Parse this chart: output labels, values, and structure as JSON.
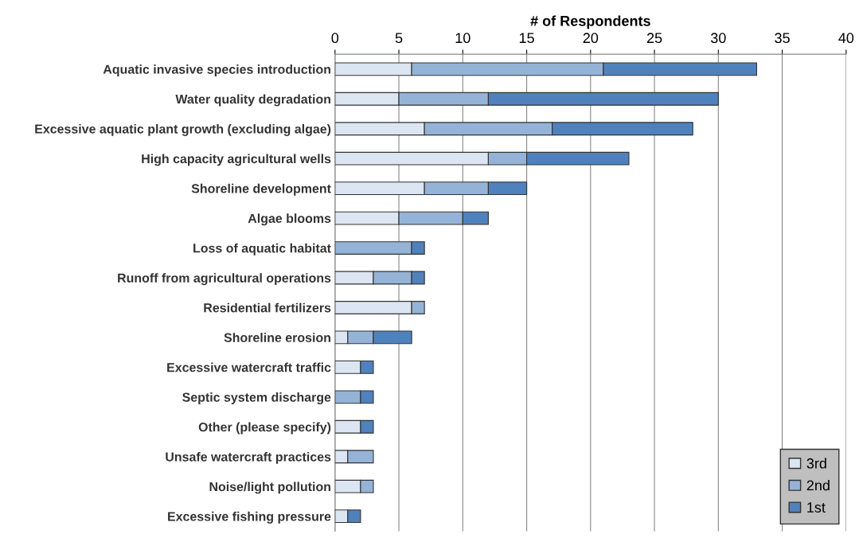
{
  "chart_data": {
    "type": "bar",
    "orientation": "horizontal",
    "stacked": true,
    "xlabel": "# of Respondents",
    "categories": [
      "Aquatic invasive species introduction",
      "Water quality degradation",
      "Excessive aquatic plant growth (excluding algae)",
      "High capacity agricultural wells",
      "Shoreline development",
      "Algae blooms",
      "Loss of aquatic habitat",
      "Runoff from agricultural operations",
      "Residential fertilizers",
      "Shoreline erosion",
      "Excessive watercraft traffic",
      "Septic system discharge",
      "Other (please specify)",
      "Unsafe watercraft practices",
      "Noise/light pollution",
      "Excessive fishing pressure"
    ],
    "series": [
      {
        "name": "3rd",
        "color": "#dce6f2",
        "values": [
          6,
          5,
          7,
          12,
          7,
          5,
          0,
          3,
          6,
          1,
          2,
          0,
          2,
          1,
          2,
          1
        ]
      },
      {
        "name": "2nd",
        "color": "#95b3d7",
        "values": [
          15,
          7,
          10,
          3,
          5,
          5,
          6,
          3,
          1,
          2,
          0,
          2,
          0,
          2,
          1,
          0
        ]
      },
      {
        "name": "1st",
        "color": "#4f81bd",
        "values": [
          12,
          18,
          11,
          8,
          3,
          2,
          1,
          1,
          0,
          3,
          1,
          1,
          1,
          0,
          0,
          1
        ]
      }
    ],
    "xlim": [
      0,
      40
    ],
    "xticks": [
      0,
      5,
      10,
      15,
      20,
      25,
      30,
      35,
      40
    ],
    "grid": "x",
    "legend": "bottom right"
  }
}
